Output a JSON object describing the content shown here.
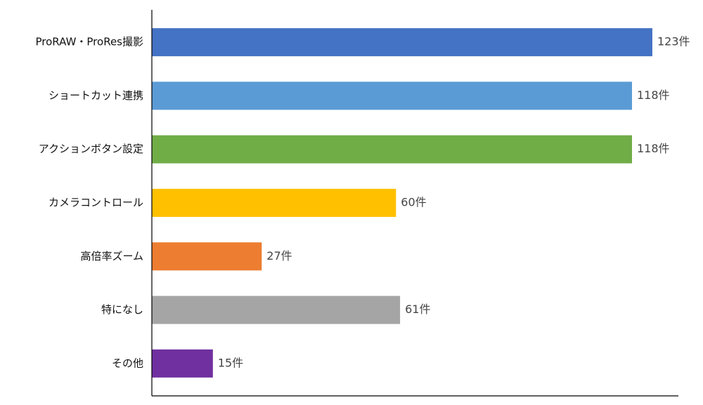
{
  "chart_data": {
    "type": "bar",
    "orientation": "horizontal",
    "categories": [
      "ProRAW・ProRes撮影",
      "ショートカット連携",
      "アクションボタン設定",
      "カメラコントロール",
      "高倍率ズーム",
      "特になし",
      "その他"
    ],
    "values": [
      123,
      118,
      118,
      60,
      27,
      61,
      15
    ],
    "value_labels": [
      "123件",
      "118件",
      "118件",
      "60件",
      "27件",
      "61件",
      "15件"
    ],
    "colors": [
      "#4472c4",
      "#5b9bd5",
      "#70ad47",
      "#ffc000",
      "#ed7d31",
      "#a5a5a5",
      "#7030a0"
    ],
    "xlim": [
      0,
      129.4
    ]
  }
}
